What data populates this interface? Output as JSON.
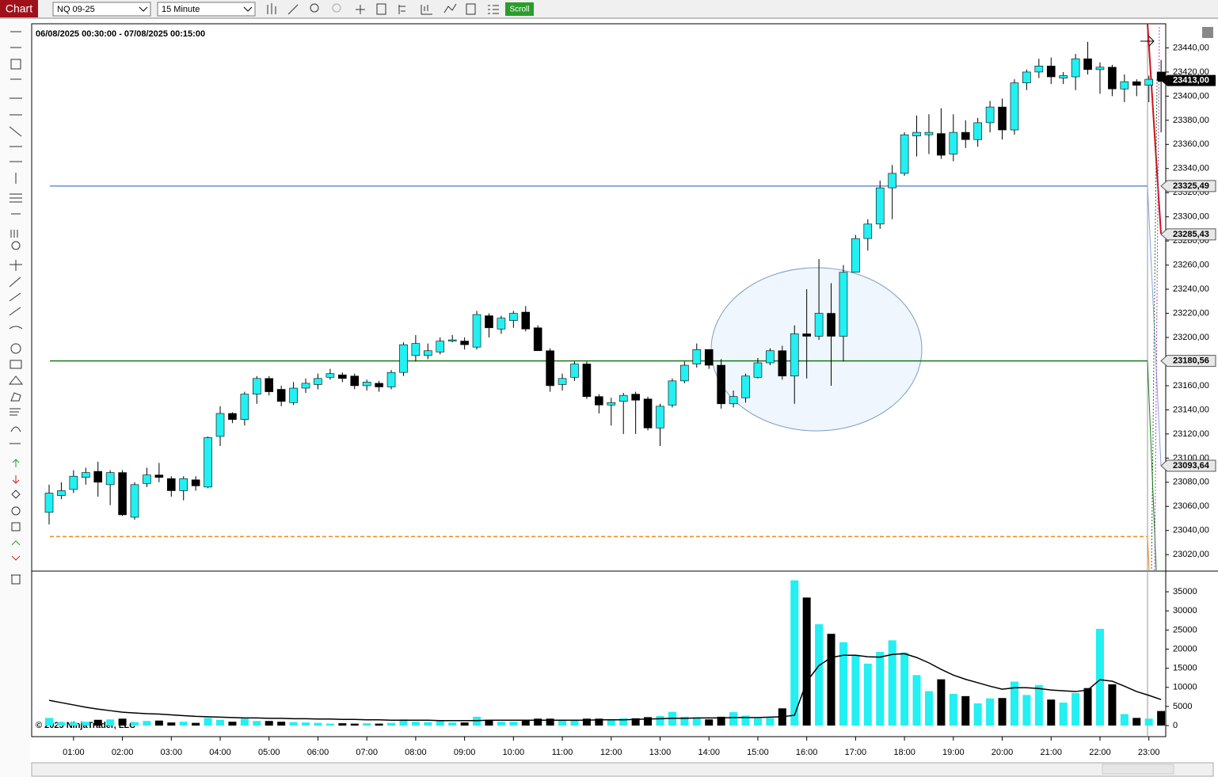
{
  "toolbar": {
    "label": "Chart",
    "instrument": "NQ 09-25",
    "interval": "15 Minute",
    "scroll": "Scroll"
  },
  "chart_data": {
    "type": "candlestick",
    "title": "06/08/2025 00:30:00 - 07/08/2025 00:15:00",
    "copyright": "© 2025 NinjaTrader, LLC",
    "up_color": "#22f0f2",
    "down_color": "#000000",
    "categories": [
      null,
      null,
      "01:00",
      null,
      null,
      null,
      "02:00",
      null,
      null,
      null,
      "03:00",
      null,
      null,
      null,
      "04:00",
      null,
      null,
      null,
      "05:00",
      null,
      null,
      null,
      "06:00",
      null,
      null,
      null,
      "07:00",
      null,
      null,
      null,
      "08:00",
      null,
      null,
      null,
      "09:00",
      null,
      null,
      null,
      "10:00",
      null,
      null,
      null,
      "11:00",
      null,
      null,
      null,
      "12:00",
      null,
      null,
      null,
      "13:00",
      null,
      null,
      null,
      "14:00",
      null,
      null,
      null,
      "15:00",
      null,
      null,
      null,
      "16:00",
      null,
      null,
      null,
      "17:00",
      null,
      null,
      null,
      "18:00",
      null,
      null,
      null,
      "19:00",
      null,
      null,
      null,
      "20:00",
      null,
      null,
      null,
      "21:00",
      null,
      null,
      null,
      "22:00",
      null,
      null,
      null,
      "23:00",
      null
    ],
    "open": [
      23055,
      23069,
      23074,
      23084,
      23089,
      23078,
      23088,
      23051,
      23079,
      23086,
      23083,
      23073,
      23082,
      23076,
      23118,
      23137,
      23132,
      23153,
      23166,
      23157,
      23146,
      23158,
      23161,
      23167,
      23169,
      23168,
      23160,
      23162,
      23159,
      23171,
      23185,
      23185,
      23188,
      23197,
      23197,
      23192,
      23218,
      23207,
      23214,
      23221,
      23208,
      23189,
      23161,
      23167,
      23178,
      23151,
      23144,
      23147,
      23153,
      23149,
      23125,
      23144,
      23164,
      23178,
      23190,
      23177,
      23145,
      23150,
      23167,
      23179,
      23189,
      23168,
      23203,
      23201,
      23220,
      23201,
      23254,
      23282,
      23294,
      23324,
      23336,
      23367,
      23368,
      23369,
      23352,
      23370,
      23364,
      23378,
      23391,
      23372,
      23411,
      23420,
      23425,
      23415,
      23416,
      23431,
      23422,
      23424,
      23406,
      23412,
      23409,
      23420
    ],
    "high": [
      23078,
      23080,
      23090,
      23092,
      23097,
      23090,
      23090,
      23080,
      23092,
      23096,
      23085,
      23085,
      23085,
      23118,
      23143,
      23138,
      23155,
      23168,
      23168,
      23160,
      23163,
      23166,
      23170,
      23174,
      23171,
      23170,
      23165,
      23164,
      23173,
      23196,
      23202,
      23195,
      23200,
      23202,
      23200,
      23222,
      23220,
      23218,
      23222,
      23226,
      23210,
      23191,
      23170,
      23180,
      23180,
      23153,
      23150,
      23154,
      23155,
      23151,
      23145,
      23166,
      23180,
      23195,
      23190,
      23182,
      23156,
      23170,
      23183,
      23191,
      23193,
      23210,
      23240,
      23265,
      23245,
      23260,
      23285,
      23298,
      23330,
      23343,
      23370,
      23384,
      23385,
      23390,
      23385,
      23380,
      23382,
      23396,
      23398,
      23414,
      23422,
      23431,
      23432,
      23420,
      23435,
      23445,
      23428,
      23426,
      23418,
      23414,
      23417,
      23430
    ],
    "low": [
      23045,
      23066,
      23071,
      23078,
      23068,
      23061,
      23052,
      23049,
      23076,
      23080,
      23068,
      23065,
      23073,
      23075,
      23110,
      23129,
      23127,
      23145,
      23152,
      23143,
      23144,
      23154,
      23157,
      23165,
      23163,
      23157,
      23156,
      23155,
      23157,
      23168,
      23180,
      23182,
      23186,
      23196,
      23190,
      23190,
      23200,
      23203,
      23208,
      23205,
      23189,
      23155,
      23156,
      23164,
      23149,
      23137,
      23127,
      23120,
      23120,
      23123,
      23110,
      23142,
      23162,
      23175,
      23174,
      23141,
      23142,
      23146,
      23166,
      23177,
      23165,
      23145,
      23166,
      23198,
      23160,
      23180,
      23254,
      23272,
      23290,
      23298,
      23334,
      23350,
      23352,
      23348,
      23346,
      23357,
      23358,
      23370,
      23364,
      23368,
      23405,
      23415,
      23410,
      23410,
      23405,
      23418,
      23402,
      23400,
      23395,
      23400,
      23395,
      23370
    ],
    "close": [
      23071,
      23073,
      23085,
      23088,
      23080,
      23088,
      23053,
      23078,
      23086,
      23084,
      23073,
      23083,
      23077,
      23117,
      23137,
      23132,
      23153,
      23166,
      23155,
      23147,
      23158,
      23162,
      23166,
      23170,
      23166,
      23160,
      23163,
      23159,
      23171,
      23194,
      23195,
      23189,
      23197,
      23198,
      23194,
      23219,
      23208,
      23216,
      23220,
      23207,
      23189,
      23160,
      23166,
      23178,
      23151,
      23144,
      23146,
      23152,
      23148,
      23125,
      23143,
      23164,
      23177,
      23190,
      23177,
      23145,
      23151,
      23168,
      23179,
      23189,
      23168,
      23203,
      23201,
      23220,
      23201,
      23254,
      23282,
      23294,
      23324,
      23336,
      23368,
      23370,
      23370,
      23351,
      23370,
      23364,
      23378,
      23391,
      23372,
      23411,
      23420,
      23425,
      23416,
      23417,
      23431,
      23422,
      23424,
      23406,
      23412,
      23409,
      23414,
      23413
    ],
    "volume": [
      2000,
      900,
      800,
      1000,
      1500,
      1600,
      1800,
      900,
      1200,
      1300,
      800,
      1000,
      700,
      2000,
      1500,
      1000,
      1800,
      1200,
      1200,
      1000,
      900,
      800,
      700,
      500,
      600,
      500,
      600,
      500,
      700,
      1600,
      1000,
      900,
      1200,
      800,
      800,
      2300,
      1500,
      1000,
      1000,
      1500,
      1800,
      1800,
      1400,
      1400,
      1800,
      1800,
      1500,
      1900,
      1900,
      2200,
      2500,
      3600,
      2300,
      1900,
      1600,
      2300,
      3500,
      2600,
      1900,
      2000,
      4500,
      38000,
      33500,
      26500,
      24000,
      21800,
      18500,
      16200,
      19300,
      22300,
      19100,
      13200,
      9000,
      12100,
      8300,
      7700,
      5800,
      7100,
      7200,
      11500,
      8000,
      10600,
      6800,
      6000,
      8500,
      9800,
      25300,
      10800,
      3000,
      2000,
      1800,
      3800
    ],
    "volume_ma": [
      6600,
      6000,
      5400,
      4800,
      4300,
      3900,
      3500,
      3300,
      3100,
      3000,
      2800,
      2600,
      2400,
      2300,
      2200,
      2100,
      2000,
      2000,
      1900,
      1900,
      1800,
      1800,
      1700,
      1700,
      1600,
      1600,
      1500,
      1500,
      1400,
      1400,
      1400,
      1400,
      1300,
      1300,
      1300,
      1300,
      1400,
      1400,
      1400,
      1400,
      1400,
      1400,
      1400,
      1400,
      1400,
      1500,
      1500,
      1500,
      1600,
      1700,
      1800,
      1900,
      1900,
      2000,
      2000,
      2000,
      2100,
      2100,
      2100,
      2200,
      2300,
      2700,
      11500,
      15700,
      17800,
      18400,
      18400,
      18000,
      17900,
      18600,
      18800,
      17800,
      16400,
      14700,
      13200,
      12100,
      11200,
      10300,
      9500,
      9900,
      9900,
      9700,
      9300,
      9100,
      8900,
      9300,
      12000,
      11600,
      10300,
      8900,
      7900,
      6800
    ],
    "ylim": [
      23007,
      23460
    ],
    "yticks": [
      {
        "value": 23020,
        "label": "23020,00"
      },
      {
        "value": 23040,
        "label": "23040,00"
      },
      {
        "value": 23060,
        "label": "23060,00"
      },
      {
        "value": 23080,
        "label": "23080,00"
      },
      {
        "value": 23100,
        "label": "23100,00"
      },
      {
        "value": 23120,
        "label": "23120,00"
      },
      {
        "value": 23140,
        "label": "23140,00"
      },
      {
        "value": 23160,
        "label": "23160,00"
      },
      {
        "value": 23180,
        "label": "23180,00"
      },
      {
        "value": 23200,
        "label": "23200,00"
      },
      {
        "value": 23220,
        "label": "23220,00"
      },
      {
        "value": 23240,
        "label": "23240,00"
      },
      {
        "value": 23260,
        "label": "23260,00"
      },
      {
        "value": 23280,
        "label": "23280,00"
      },
      {
        "value": 23300,
        "label": "23300,00"
      },
      {
        "value": 23320,
        "label": "23320,00"
      },
      {
        "value": 23340,
        "label": "23340,00"
      },
      {
        "value": 23360,
        "label": "23360,00"
      },
      {
        "value": 23380,
        "label": "23380,00"
      },
      {
        "value": 23400,
        "label": "23400,00"
      },
      {
        "value": 23420,
        "label": "23420,00"
      },
      {
        "value": 23440,
        "label": "23440,00"
      }
    ],
    "volume_ylim": [
      0,
      40000
    ],
    "volume_yticks": [
      0,
      5000,
      10000,
      15000,
      20000,
      25000,
      30000,
      35000
    ],
    "levels": [
      {
        "value": 23325.49,
        "label": "23325,49",
        "color": "#6a8fd6"
      },
      {
        "value": 23180.56,
        "label": "23180,56",
        "color": "#1a7a1a"
      },
      {
        "value": 23035,
        "color": "#f08a20",
        "dashed": true
      }
    ],
    "price_markers": [
      {
        "value": 23285.43,
        "label": "23285,43"
      },
      {
        "value": 23093.64,
        "label": "23093,64"
      }
    ],
    "last_price": {
      "value": 23413,
      "label": "23413,00"
    }
  }
}
